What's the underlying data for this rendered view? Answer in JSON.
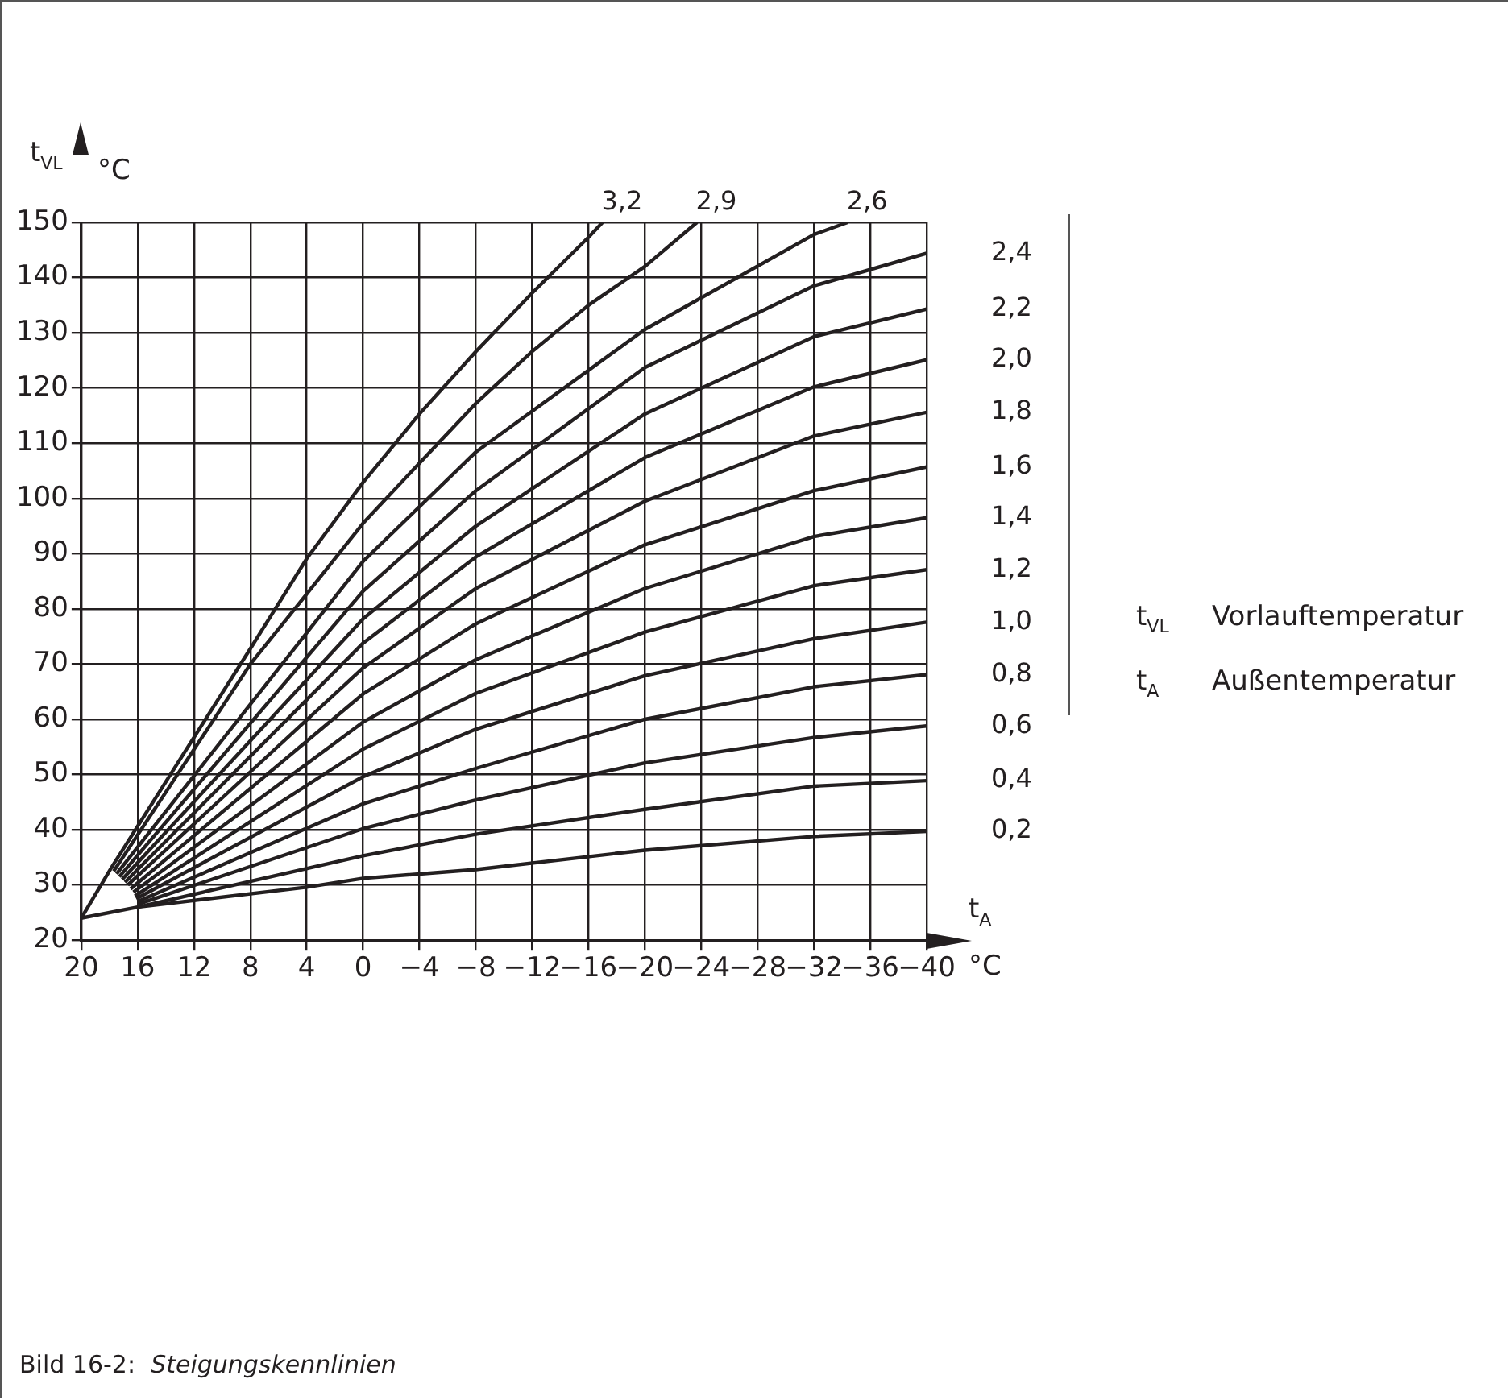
{
  "chart_data": {
    "type": "line",
    "xlabel": "t$_{A}$",
    "ylabel": "t$_{VL}$",
    "xlim": [
      20,
      -40
    ],
    "ylim": [
      20,
      150
    ],
    "xticks": [
      20,
      16,
      12,
      8,
      4,
      0,
      {
        "value": -4,
        "label": "−4"
      },
      {
        "value": -8,
        "label": "−8"
      },
      {
        "value": -12,
        "label": "−12"
      },
      {
        "value": -16,
        "label": "−16"
      },
      {
        "value": -20,
        "label": "−20"
      },
      {
        "value": -24,
        "label": "−24"
      },
      {
        "value": -28,
        "label": "−28"
      },
      {
        "value": -32,
        "label": "−32"
      },
      {
        "value": -36,
        "label": "−36"
      },
      {
        "value": -40,
        "label": "−40"
      }
    ],
    "yticks": [
      20,
      30,
      40,
      50,
      60,
      70,
      80,
      90,
      100,
      110,
      120,
      130,
      140,
      150
    ],
    "grid": true,
    "legend": false,
    "marker": "none",
    "line_style": "solid",
    "annotations": [
      "°C",
      "°C",
      "t$_{VL}$ Vorlauftemperatur",
      "t$_{A}$ Außentemperatur",
      "Bild 16-2: Steigungskennlinien"
    ],
    "series": [
      {
        "name": "3,2",
        "color": "#231f20",
        "x": [
          20,
          17.9,
          8,
          4,
          0,
          -4,
          -8,
          -12,
          -16,
          -17
        ],
        "values": [
          24,
          33,
          72.8,
          89.1,
          102.9,
          115.3,
          126.6,
          137.2,
          147.3,
          150
        ]
      },
      {
        "name": "2,9",
        "color": "#231f20",
        "x": [
          17.7,
          8,
          4,
          0,
          -4,
          -8,
          -12,
          -16,
          -20,
          -23.7
        ],
        "values": [
          32.5,
          70,
          82.7,
          95.5,
          106.4,
          117.2,
          126.6,
          135,
          142,
          150
        ]
      },
      {
        "name": "2,6",
        "color": "#231f20",
        "x": [
          17.5,
          0,
          -8,
          -20,
          -32,
          -34.4
        ],
        "values": [
          32,
          88.6,
          108.4,
          130.6,
          147.8,
          150
        ]
      },
      {
        "name": "2,4",
        "color": "#231f20",
        "x": [
          17.3,
          0,
          -8,
          -20,
          -32,
          -40
        ],
        "values": [
          31.5,
          83.2,
          101.4,
          123.7,
          138.5,
          144.4
        ]
      },
      {
        "name": "2,2",
        "color": "#231f20",
        "x": [
          17.1,
          0,
          -8,
          -20,
          -32,
          -40
        ],
        "values": [
          31,
          78.2,
          95,
          115.3,
          129.3,
          134.3
        ]
      },
      {
        "name": "2,0",
        "color": "#231f20",
        "x": [
          16.9,
          0,
          -8,
          -20,
          -32,
          -40
        ],
        "values": [
          30.5,
          73.8,
          89.4,
          107.4,
          120.2,
          125.1
        ]
      },
      {
        "name": "1,8",
        "color": "#231f20",
        "x": [
          16.7,
          0,
          -8,
          -20,
          -32,
          -40
        ],
        "values": [
          30,
          69.3,
          83.7,
          99.5,
          111.3,
          115.6
        ]
      },
      {
        "name": "1,6",
        "color": "#231f20",
        "x": [
          16.5,
          0,
          -8,
          -20,
          -32,
          -40
        ],
        "values": [
          29.3,
          64.6,
          77.3,
          91.6,
          101.4,
          105.7
        ]
      },
      {
        "name": "1,4",
        "color": "#231f20",
        "x": [
          16.3,
          0,
          -8,
          -20,
          -32,
          -40
        ],
        "values": [
          28.7,
          59.5,
          70.8,
          83.7,
          93.1,
          96.5
        ]
      },
      {
        "name": "1,2",
        "color": "#231f20",
        "x": [
          16.2,
          0,
          -8,
          -20,
          -32,
          -40
        ],
        "values": [
          28,
          54.6,
          64.7,
          75.8,
          84.2,
          87.1
        ]
      },
      {
        "name": "1,0",
        "color": "#231f20",
        "x": [
          16.1,
          0,
          -8,
          -20,
          -32,
          -40
        ],
        "values": [
          27.5,
          49.6,
          58.2,
          67.9,
          74.6,
          77.6
        ]
      },
      {
        "name": "0,8",
        "color": "#231f20",
        "x": [
          16,
          0,
          -8,
          -20,
          -32,
          -40
        ],
        "values": [
          27,
          44.7,
          51.1,
          60,
          65.9,
          68.1
        ]
      },
      {
        "name": "0,6",
        "color": "#231f20",
        "x": [
          16,
          0,
          -8,
          -20,
          -32,
          -40
        ],
        "values": [
          26.5,
          40.2,
          45.4,
          52.1,
          56.7,
          58.8
        ]
      },
      {
        "name": "0,4",
        "color": "#231f20",
        "x": [
          16,
          0,
          -8,
          -20,
          -32,
          -40
        ],
        "values": [
          26,
          35.3,
          39.2,
          43.7,
          47.9,
          48.9
        ]
      },
      {
        "name": "0,2",
        "color": "#231f20",
        "x": [
          20,
          16,
          4,
          0,
          -8,
          -20,
          -32,
          -40
        ],
        "values": [
          24,
          26,
          29.6,
          31.2,
          32.8,
          36.3,
          38.8,
          39.7
        ]
      }
    ]
  }
}
